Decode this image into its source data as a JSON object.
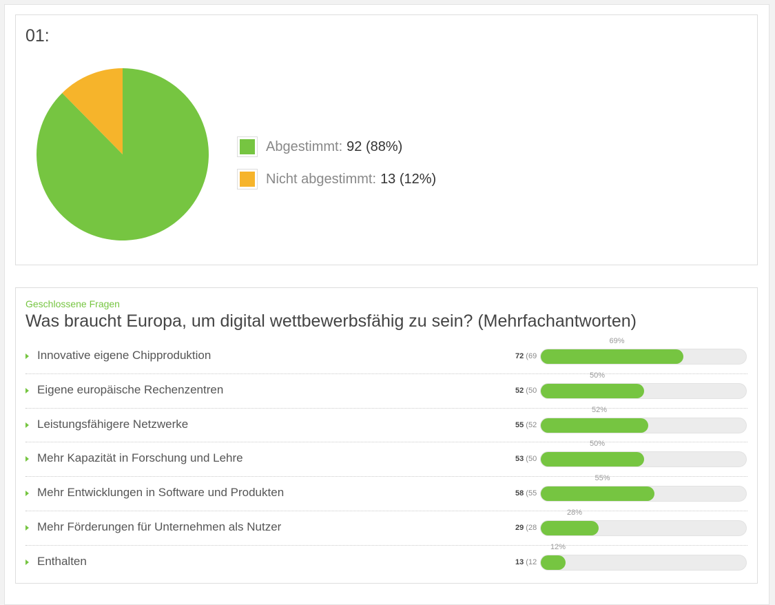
{
  "card1": {
    "title": "01:",
    "chart_data": {
      "type": "pie",
      "title": "",
      "slices": [
        {
          "label": "Abgestimmt:",
          "value": 92,
          "display": "92 (88%)",
          "color": "#76c541"
        },
        {
          "label": "Nicht abgestimmt:",
          "value": 13,
          "display": "13 (12%)",
          "color": "#f6b42b"
        }
      ],
      "legend_position": "right"
    }
  },
  "card2": {
    "section_label": "Geschlossene Fragen",
    "question": "Was braucht Europa, um digital wettbewerbsfähig zu sein? (Mehrfachantworten)",
    "chart_data": {
      "type": "bar",
      "orientation": "horizontal",
      "categories": [
        "Innovative eigene Chipproduktion",
        "Eigene europäische Rechenzentren",
        "Leistungsfähigere Netzwerke",
        "Mehr Kapazität in Forschung und Lehre",
        "Mehr Entwicklungen in Software und Produkten",
        "Mehr Förderungen für Unternehmen als Nutzer",
        "Enthalten"
      ],
      "counts": [
        72,
        52,
        55,
        53,
        58,
        29,
        13
      ],
      "count_labels": [
        "72",
        "52",
        "55",
        "53",
        "58",
        "29",
        "13"
      ],
      "count_pct_labels": [
        "(69",
        "(50",
        "(52",
        "(50",
        "(55",
        "(28",
        "(12"
      ],
      "percent": [
        69,
        50,
        52,
        50,
        55,
        28,
        12
      ],
      "percent_labels": [
        "69%",
        "50%",
        "52%",
        "50%",
        "55%",
        "28%",
        "12%"
      ],
      "xlim": [
        0,
        100
      ],
      "bar_color": "#76c541",
      "track_color": "#ececec"
    }
  }
}
